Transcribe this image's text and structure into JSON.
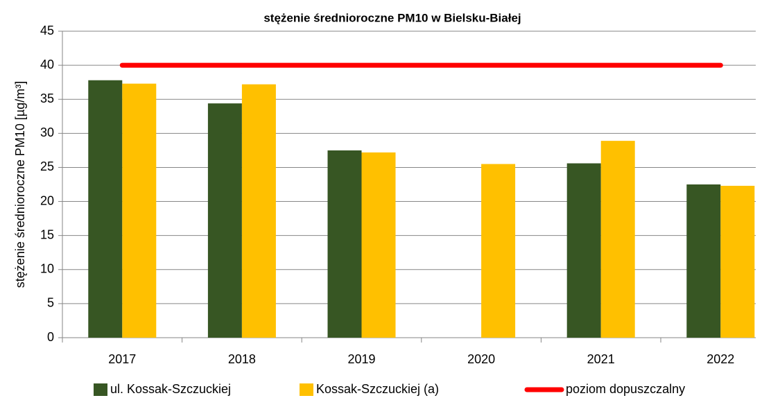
{
  "chart_data": {
    "type": "bar",
    "title": "stężenie średnioroczne PM10 w Bielsku-Białej",
    "y_label": "stężenie średnioroczne PM10 [µg/m³]",
    "categories": [
      "2017",
      "2018",
      "2019",
      "2020",
      "2021",
      "2022"
    ],
    "series": [
      {
        "name": "ul. Kossak-Szczuckiej",
        "color": "#375623",
        "values": [
          37.8,
          34.4,
          27.5,
          null,
          25.6,
          22.5
        ]
      },
      {
        "name": "Kossak-Szczuckiej (a)",
        "color": "#ffc000",
        "values": [
          37.3,
          37.2,
          27.2,
          25.5,
          28.9,
          22.3
        ]
      },
      {
        "name": "poziom dopuszczalny",
        "color": "#ff0000",
        "type": "line",
        "values": [
          40,
          40,
          40,
          40,
          40,
          40
        ]
      }
    ],
    "ylim": [
      0,
      45
    ],
    "yticks": [
      0,
      5,
      10,
      15,
      20,
      25,
      30,
      35,
      40,
      45
    ],
    "grid": true,
    "legend": "bottom"
  }
}
